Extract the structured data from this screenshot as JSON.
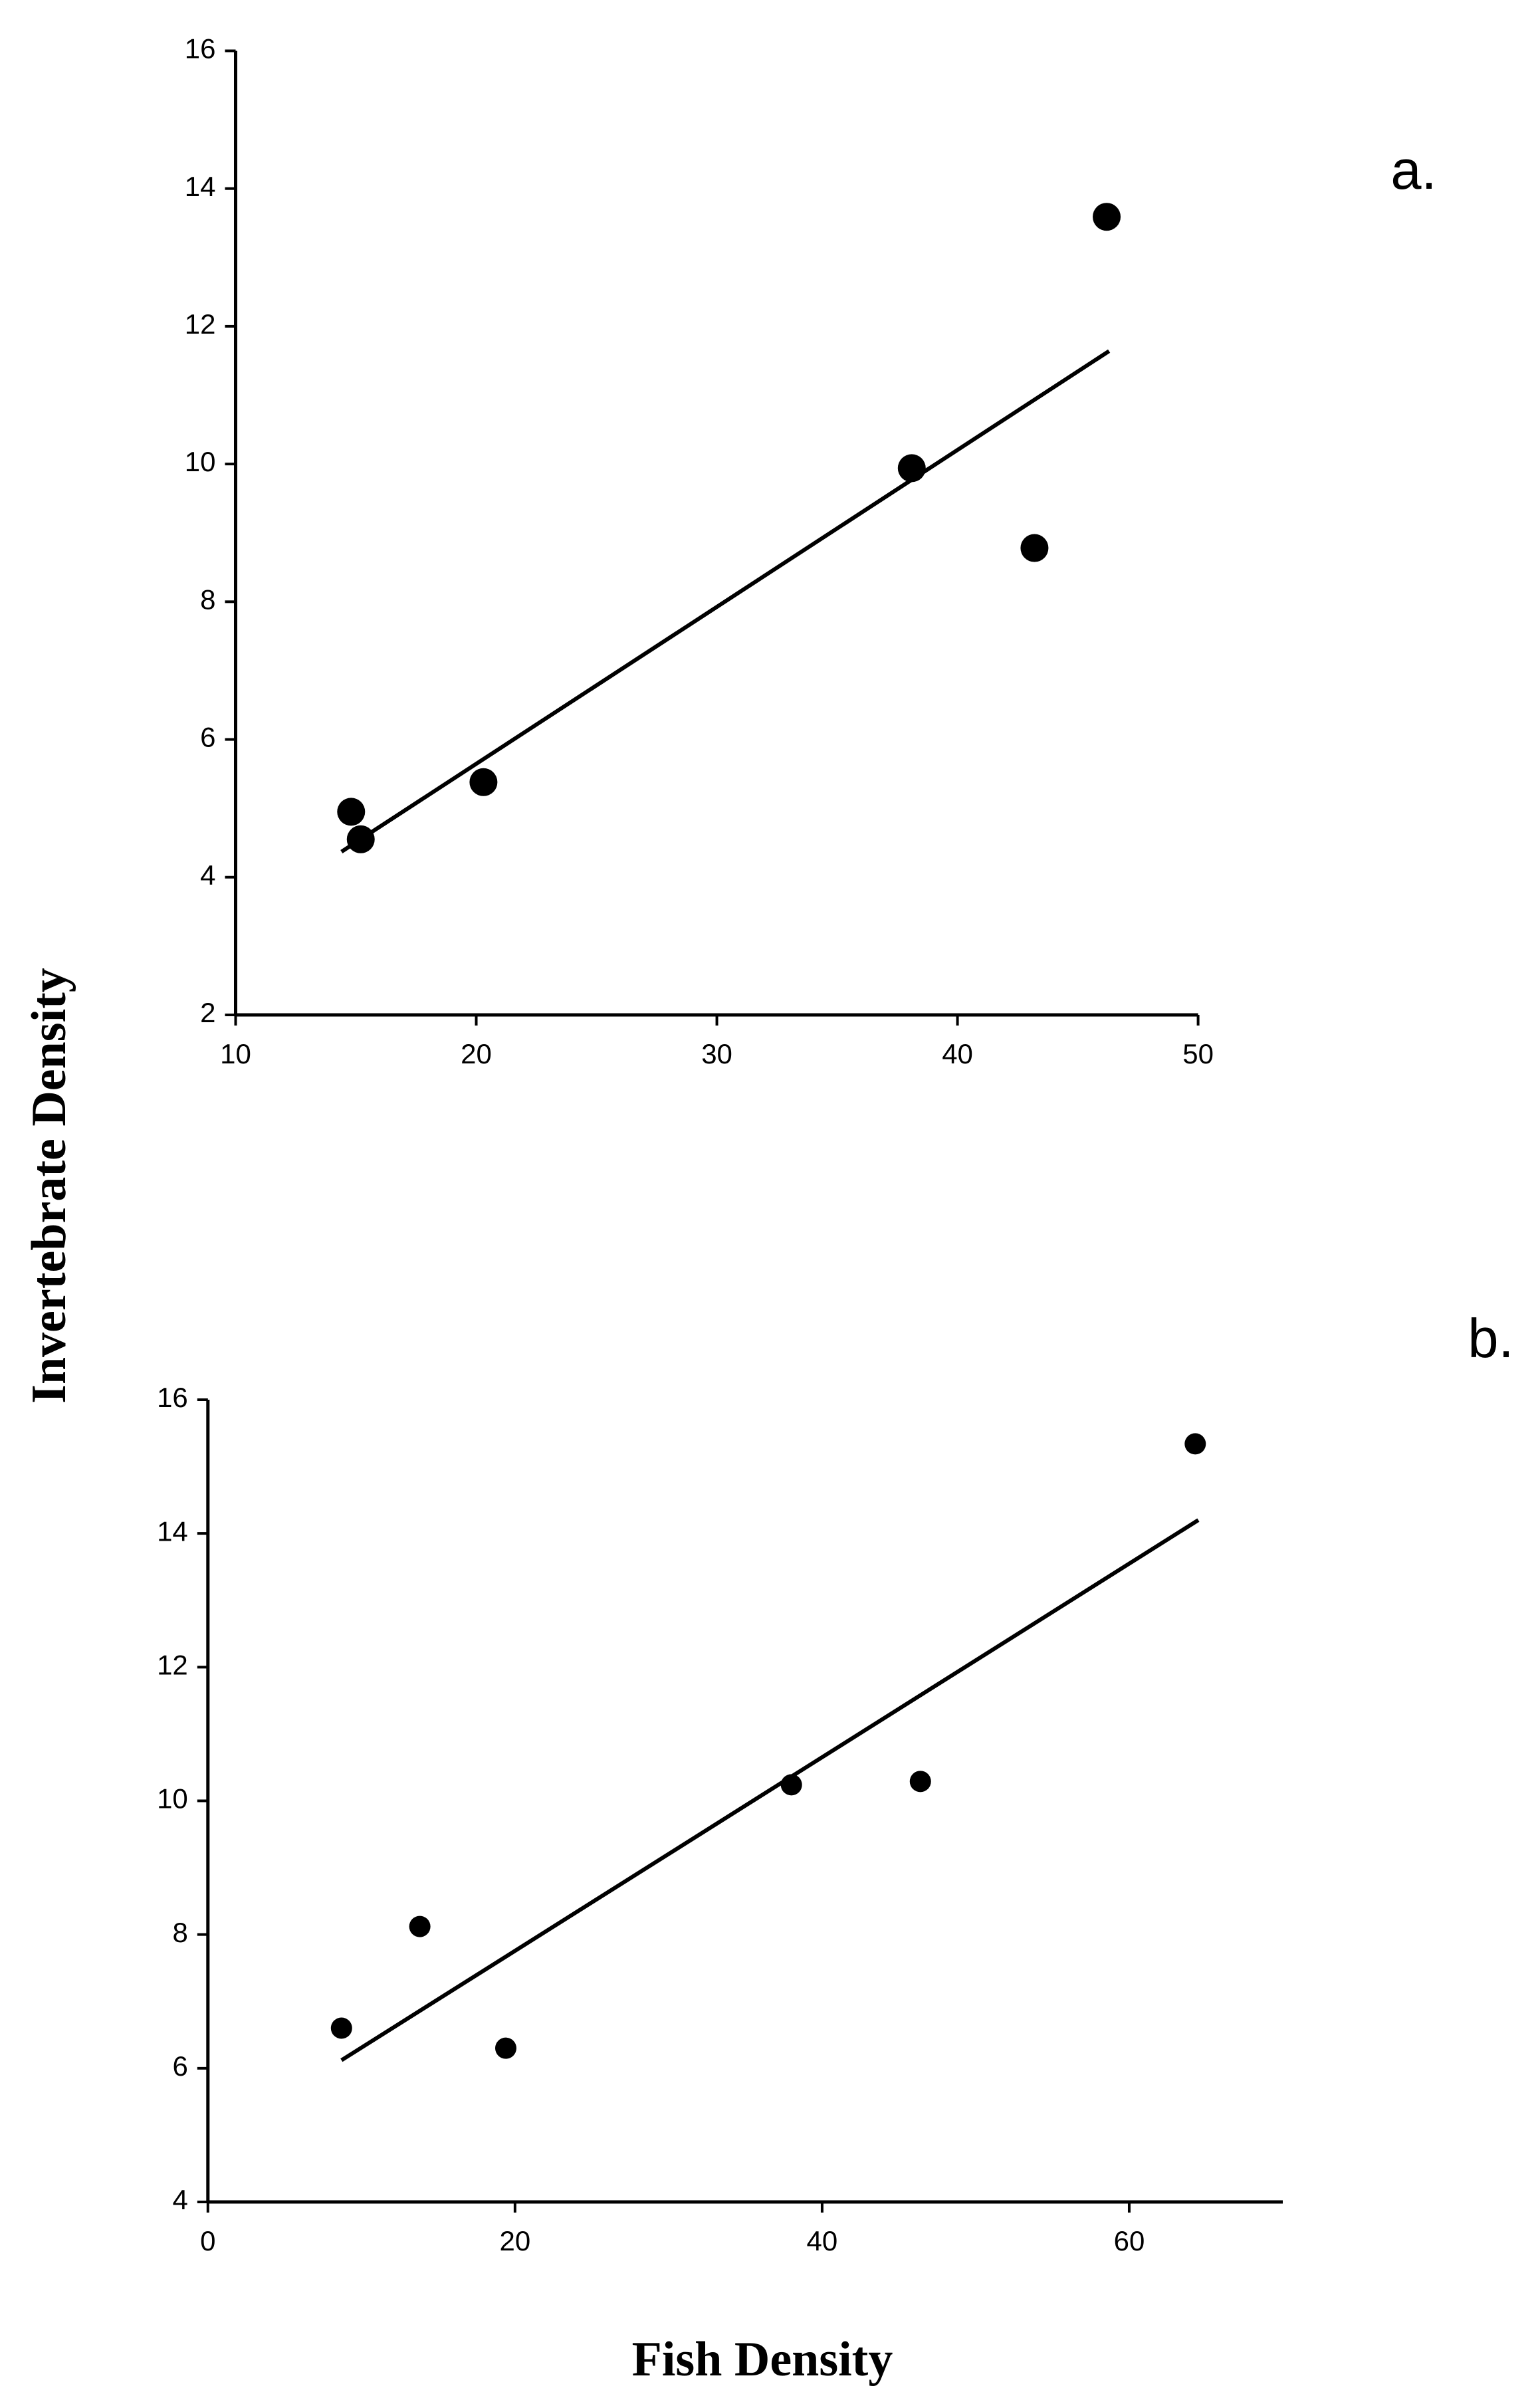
{
  "chart_data": [
    {
      "type": "scatter",
      "panel_label": "a.",
      "ylabel": "Invertebrate Density",
      "x": [
        14.8,
        15.2,
        20.3,
        38.1,
        43.2,
        46.2
      ],
      "y": [
        4.95,
        4.55,
        5.38,
        9.94,
        8.78,
        13.59
      ],
      "color": "#000000",
      "trendline": {
        "x": [
          14.4,
          46.3
        ],
        "y": [
          4.37,
          11.64
        ]
      },
      "xlim": [
        10,
        50
      ],
      "xticks": [
        10,
        20,
        30,
        40,
        50
      ],
      "ylim": [
        2,
        16
      ],
      "yticks": [
        2,
        4,
        6,
        8,
        10,
        12,
        14,
        16
      ],
      "grid": false
    },
    {
      "type": "scatter",
      "panel_label": "b.",
      "xlabel": "Fish Density",
      "x": [
        8.7,
        13.8,
        19.4,
        38.0,
        46.4,
        64.3
      ],
      "y": [
        6.6,
        8.12,
        6.3,
        10.24,
        10.29,
        15.34
      ],
      "color": "#000000",
      "trendline": {
        "x": [
          8.7,
          64.5
        ],
        "y": [
          6.12,
          14.2
        ]
      },
      "xlim": [
        0,
        70
      ],
      "xticks": [
        0,
        20,
        40,
        60
      ],
      "ylim": [
        4,
        16
      ],
      "yticks": [
        4,
        6,
        8,
        10,
        12,
        14,
        16
      ],
      "grid": false
    }
  ]
}
